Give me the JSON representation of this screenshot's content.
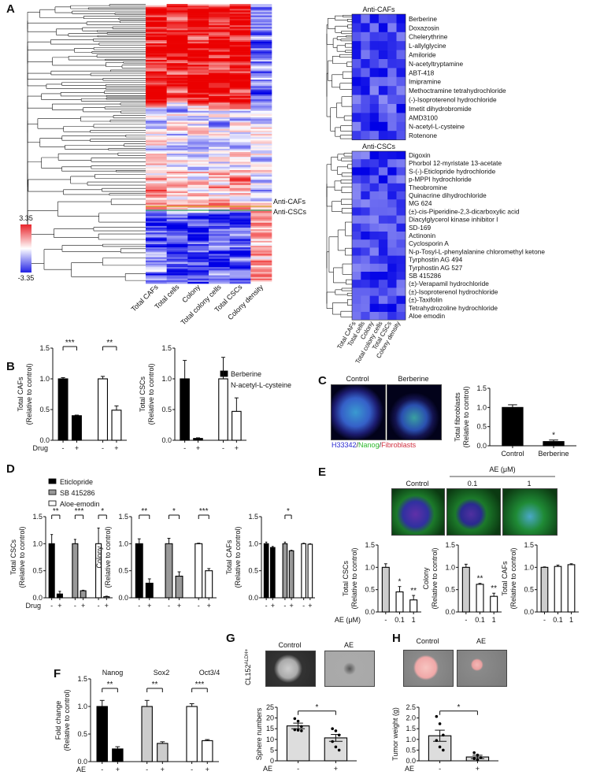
{
  "panels": [
    "A",
    "B",
    "C",
    "D",
    "E",
    "F",
    "G",
    "H"
  ],
  "heatmap": {
    "columns": [
      "Total CAFs",
      "Total cells",
      "Colony",
      "Total colony cells",
      "Total CSCs",
      "Colony density"
    ],
    "colorbar_max": "3.35",
    "colorbar_min": "-3.35",
    "colors": {
      "high": "#e8242b",
      "mid": "#ffffff",
      "low": "#2323e6"
    },
    "marker_labels": [
      "Anti-CAFs",
      "Anti-CSCs"
    ],
    "anti_cafs_title": "Anti-CAFs",
    "anti_cafs": [
      "Berberine",
      "Doxazosin",
      "Chelerythrine",
      "L-allylglycine",
      "Amiloride",
      "N-acetyltryptamine",
      "ABT-418",
      "Imipramine",
      "Methoctramine tetrahydrochloride",
      "(-)-Isoproterenol hydrochloride",
      "Imetit dihydrobromide",
      "AMD3100",
      "N-acetyl-L-cysteine",
      "Rotenone"
    ],
    "anti_cscs_title": "Anti-CSCs",
    "anti_cscs": [
      "Digoxin",
      "Phorbol 12-myristate 13-acetate",
      "S-(-)-Eticlopride hydrochloride",
      "p-MPPI hydrochloride",
      "Theobromine",
      "Quinacrine dihydrochloride",
      "MG 624",
      "(±)-cis-Piperidine-2,3-dicarboxylic acid",
      "Diacylglycerol kinase inhibitor I",
      "SD-169",
      "Actinonin",
      "Cyclosporin A",
      "N-p-Tosyl-L-phenylalanine chloromethyl ketone",
      "Tyrphostin AG 494",
      "Tyrphostin AG 527",
      "SB 415286",
      "(±)-Verapamil hydrochloride",
      "(±)-Isoproterenol hydrochloride",
      "(±)-Taxifolin",
      "Tetrahydrozoline hydrochloride",
      "Aloe emodin"
    ]
  },
  "legend_b": [
    "Berberine",
    "N-acetyl-L-cysteine"
  ],
  "legend_d": [
    "Eticlopride",
    "SB 415286",
    "Aloe-emodin"
  ],
  "panel_c": {
    "images": [
      "Control",
      "Berberine"
    ],
    "stain": [
      "H33342",
      "/",
      "Nanog",
      "/",
      "Fibroblasts"
    ]
  },
  "panel_e": {
    "header": "AE (μM)",
    "images": [
      "Control",
      "0.1",
      "1"
    ]
  },
  "panel_f": {
    "genes": [
      "Nanog",
      "Sox2",
      "Oct3/4"
    ]
  },
  "panel_g": {
    "images": [
      "Control",
      "AE"
    ],
    "side_label": "CL152",
    "side_sup": "ALDH+"
  },
  "panel_h": {
    "images": [
      "Control",
      "AE"
    ]
  },
  "chart_data": [
    {
      "id": "B1",
      "type": "bar",
      "ylabel": "Total CAFs",
      "ylabel2": "(Relative to control)",
      "ylim": [
        0,
        1.5
      ],
      "yticks": [
        "0.0",
        "0.5",
        "1.0",
        "1.5"
      ],
      "xrow": "Drug",
      "categories": [
        "-",
        "+",
        "-",
        "+"
      ],
      "group": 2,
      "values": [
        1.0,
        0.4,
        1.0,
        0.49
      ],
      "errors": [
        0.02,
        0.01,
        0.04,
        0.07
      ],
      "fills": [
        "#000",
        "#000",
        "#fff",
        "#fff"
      ],
      "sig": [
        {
          "label": "***",
          "bars": [
            0,
            1
          ]
        },
        {
          "label": "**",
          "bars": [
            2,
            3
          ]
        }
      ]
    },
    {
      "id": "B2",
      "type": "bar",
      "ylabel": "Total CSCs",
      "ylabel2": "(Relative to control)",
      "ylim": [
        0,
        1.5
      ],
      "yticks": [
        "0.0",
        "0.5",
        "1.0",
        "1.5"
      ],
      "categories": [
        "-",
        "+",
        "-",
        "+"
      ],
      "group": 2,
      "values": [
        1.0,
        0.03,
        1.0,
        0.47
      ],
      "errors": [
        0.3,
        0.01,
        0.35,
        0.22
      ],
      "fills": [
        "#000",
        "#000",
        "#fff",
        "#fff"
      ]
    },
    {
      "id": "C",
      "type": "bar",
      "ylabel": "Total fibroblasts",
      "ylabel2": "(Relative to control)",
      "ylim": [
        0,
        1.5
      ],
      "yticks": [
        "0.0",
        "0.5",
        "1.0",
        "1.5"
      ],
      "categories": [
        "Control",
        "Berberine"
      ],
      "group": 1,
      "values": [
        1.0,
        0.11
      ],
      "errors": [
        0.07,
        0.04
      ],
      "fills": [
        "#000",
        "#000"
      ],
      "bar_labels": [
        "",
        "*"
      ]
    },
    {
      "id": "D1",
      "type": "bar",
      "ylabel": "Total CSCs",
      "ylabel2": "(Relative to control)",
      "ylim": [
        0,
        1.5
      ],
      "yticks": [
        "0.0",
        "0.5",
        "1.0",
        "1.5"
      ],
      "xrow": "Drug",
      "categories": [
        "-",
        "+",
        "-",
        "+",
        "-",
        "+"
      ],
      "group": 2,
      "values": [
        1.0,
        0.07,
        1.0,
        0.13,
        1.0,
        0.02
      ],
      "errors": [
        0.17,
        0.05,
        0.08,
        0.01,
        0.29,
        0.01
      ],
      "fills": [
        "#000",
        "#000",
        "#999",
        "#999",
        "#fff",
        "#fff"
      ],
      "sig": [
        {
          "label": "**",
          "bars": [
            0,
            1
          ]
        },
        {
          "label": "***",
          "bars": [
            2,
            3
          ]
        },
        {
          "label": "*",
          "bars": [
            4,
            5
          ]
        }
      ]
    },
    {
      "id": "D2",
      "type": "bar",
      "ylabel": "Colony",
      "ylabel2": "(Relative to control)",
      "ylim": [
        0,
        1.5
      ],
      "yticks": [
        "0.0",
        "0.5",
        "1.0",
        "1.5"
      ],
      "categories": [
        "-",
        "+",
        "-",
        "+",
        "-",
        "+"
      ],
      "group": 2,
      "values": [
        1.0,
        0.27,
        1.0,
        0.4,
        1.0,
        0.5
      ],
      "errors": [
        0.09,
        0.08,
        0.1,
        0.08,
        0.01,
        0.04
      ],
      "fills": [
        "#000",
        "#000",
        "#999",
        "#999",
        "#fff",
        "#fff"
      ],
      "sig": [
        {
          "label": "**",
          "bars": [
            0,
            1
          ]
        },
        {
          "label": "*",
          "bars": [
            2,
            3
          ]
        },
        {
          "label": "***",
          "bars": [
            4,
            5
          ]
        }
      ]
    },
    {
      "id": "D3",
      "type": "bar",
      "ylabel": "Total CAFs",
      "ylabel2": "(Relative to control)",
      "ylim": [
        0,
        1.5
      ],
      "yticks": [
        "0.0",
        "0.5",
        "1.0",
        "1.5"
      ],
      "categories": [
        "-",
        "+",
        "-",
        "+",
        "-",
        "+"
      ],
      "group": 2,
      "values": [
        1.0,
        0.93,
        1.0,
        0.87,
        1.0,
        0.99
      ],
      "errors": [
        0.03,
        0.02,
        0.03,
        0.01,
        0.01,
        0.01
      ],
      "fills": [
        "#000",
        "#000",
        "#999",
        "#999",
        "#fff",
        "#fff"
      ],
      "sig": [
        {
          "label": "*",
          "bars": [
            2,
            3
          ]
        }
      ]
    },
    {
      "id": "E1",
      "type": "bar",
      "ylabel": "Total CSCs",
      "ylabel2": "(Relative to control)",
      "ylim": [
        0,
        1.5
      ],
      "yticks": [
        "0.0",
        "0.5",
        "1.0",
        "1.5"
      ],
      "xrow": "AE (μM)",
      "categories": [
        "-",
        "0.1",
        "1"
      ],
      "group": 1,
      "values": [
        1.0,
        0.45,
        0.27
      ],
      "errors": [
        0.08,
        0.12,
        0.1
      ],
      "fills": [
        "#ccc",
        "#fff",
        "#fff"
      ],
      "bar_labels": [
        "",
        "*",
        "**"
      ]
    },
    {
      "id": "E2",
      "type": "bar",
      "ylabel": "Colony",
      "ylabel2": "(Relative to control)",
      "ylim": [
        0,
        1.5
      ],
      "yticks": [
        "0.0",
        "0.5",
        "1.0",
        "1.5"
      ],
      "categories": [
        "-",
        "0.1",
        "1"
      ],
      "group": 1,
      "values": [
        1.0,
        0.62,
        0.35
      ],
      "errors": [
        0.07,
        0.02,
        0.07
      ],
      "fills": [
        "#ccc",
        "#fff",
        "#fff"
      ],
      "bar_labels": [
        "",
        "**",
        "**"
      ]
    },
    {
      "id": "E3",
      "type": "bar",
      "ylabel": "Total CAFs",
      "ylabel2": "(Relative to control)",
      "ylim": [
        0,
        1.5
      ],
      "yticks": [
        "0.0",
        "0.5",
        "1.0",
        "1.5"
      ],
      "categories": [
        "-",
        "0.1",
        "1"
      ],
      "group": 1,
      "values": [
        1.0,
        1.02,
        1.06
      ],
      "errors": [
        0.01,
        0.03,
        0.02
      ],
      "fills": [
        "#ccc",
        "#fff",
        "#fff"
      ]
    },
    {
      "id": "F",
      "type": "bar",
      "ylabel": "Fold change",
      "ylabel2": "(Relative to control)",
      "ylim": [
        0,
        1.5
      ],
      "yticks": [
        "0.0",
        "0.5",
        "1.0",
        "1.5"
      ],
      "xrow": "AE",
      "categories": [
        "-",
        "+",
        "-",
        "+",
        "-",
        "+"
      ],
      "group": 2,
      "values": [
        1.0,
        0.23,
        1.0,
        0.33,
        1.0,
        0.38
      ],
      "errors": [
        0.11,
        0.04,
        0.11,
        0.03,
        0.05,
        0.02
      ],
      "fills": [
        "#000",
        "#000",
        "#ccc",
        "#ccc",
        "#fff",
        "#fff"
      ],
      "sig": [
        {
          "label": "**",
          "bars": [
            0,
            1
          ]
        },
        {
          "label": "**",
          "bars": [
            2,
            3
          ]
        },
        {
          "label": "***",
          "bars": [
            4,
            5
          ]
        }
      ]
    },
    {
      "id": "G",
      "type": "bar",
      "ylabel": "Sphere numbers",
      "ylim": [
        0,
        25
      ],
      "yticks": [
        "0",
        "5",
        "10",
        "15",
        "20",
        "25"
      ],
      "xrow": "AE",
      "categories": [
        "-",
        "+"
      ],
      "group": 1,
      "values": [
        16.3,
        10.7
      ],
      "errors": [
        1.3,
        1.6
      ],
      "fills": [
        "#ddd",
        "#ddd"
      ],
      "points": [
        [
          19.7,
          18.5,
          16,
          14.5,
          14.3,
          14
        ],
        [
          15,
          14,
          12,
          9,
          6.5,
          5
        ]
      ],
      "sig": [
        {
          "label": "*",
          "bars": [
            0,
            1
          ]
        }
      ]
    },
    {
      "id": "H",
      "type": "bar",
      "ylabel": "Tumor weight (g)",
      "ylim": [
        0,
        2.5
      ],
      "yticks": [
        "0.0",
        "0.5",
        "1.0",
        "1.5",
        "2.0",
        "2.5"
      ],
      "xrow": "AE",
      "categories": [
        "-",
        "+"
      ],
      "group": 1,
      "values": [
        1.17,
        0.18
      ],
      "errors": [
        0.26,
        0.08
      ],
      "fills": [
        "#ddd",
        "#ddd"
      ],
      "points": [
        [
          2.07,
          1.73,
          1.2,
          0.95,
          0.65,
          0.5
        ],
        [
          0.38,
          0.27,
          0.15,
          0.1,
          0.05
        ]
      ],
      "sig": [
        {
          "label": "*",
          "bars": [
            0,
            1
          ]
        }
      ]
    }
  ]
}
